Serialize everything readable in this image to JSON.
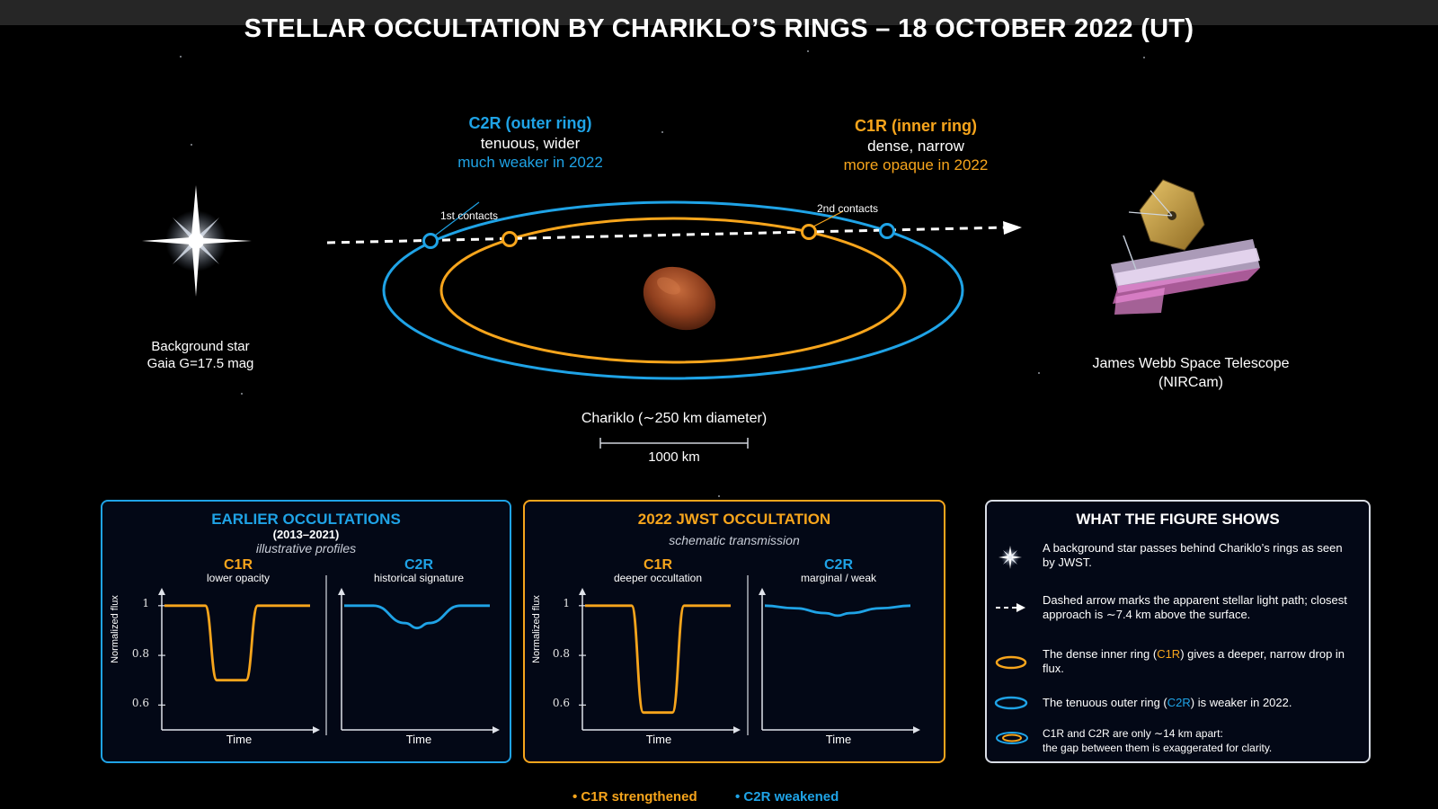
{
  "title": "STELLAR OCCULTATION BY CHARIKLO’S RINGS – 18 OCTOBER 2022 (UT)",
  "colors": {
    "c1r": "#f7a51c",
    "c2r": "#1fa3e6",
    "background": "#000000"
  },
  "diagram": {
    "c2r_label": {
      "name": "C2R (outer ring)",
      "desc": "tenuous, wider",
      "note": "much weaker in 2022"
    },
    "c1r_label": {
      "name": "C1R (inner ring)",
      "desc": "dense, narrow",
      "note": "more opaque in 2022"
    },
    "first_contacts": "1st contacts",
    "second_contacts": "2nd contacts",
    "star_label_1": "Background star",
    "star_label_2": "Gaia G=17.5 mag",
    "jwst_label_1": "James Webb Space Telescope",
    "jwst_label_2": "(NIRCam)",
    "chariklo_label": "Chariklo (∼250 km diameter)",
    "scale_label": "1000 km",
    "icons": [
      "star-icon",
      "jwst-icon",
      "chariklo-body"
    ]
  },
  "earlier_panel": {
    "title": "EARLIER OCCULTATIONS",
    "years": "(2013–2021)",
    "subtitle": "illustrative profiles",
    "ylabel": "Normalized flux",
    "left": {
      "ring": "C1R",
      "desc": "lower opacity",
      "xlabel": "Time"
    },
    "right": {
      "ring": "C2R",
      "desc": "historical signature",
      "xlabel": "Time"
    },
    "yticks": [
      "1",
      "0.8",
      "0.6"
    ]
  },
  "jwst_panel": {
    "title": "2022 JWST OCCULTATION",
    "subtitle": "schematic transmission",
    "ylabel": "Normalized flux",
    "left": {
      "ring": "C1R",
      "desc": "deeper occultation",
      "xlabel": "Time"
    },
    "right": {
      "ring": "C2R",
      "desc": "marginal / weak",
      "xlabel": "Time"
    },
    "yticks": [
      "1",
      "0.8",
      "0.6"
    ]
  },
  "chart_data": [
    {
      "type": "line",
      "title": "C1R",
      "subtitle": "lower opacity",
      "xlabel": "Time",
      "ylabel": "Normalized flux",
      "ylim": [
        0.5,
        1.05
      ],
      "yticks": [
        0.6,
        0.8,
        1
      ],
      "x": [
        0,
        0.15,
        0.28,
        0.36,
        0.56,
        0.64,
        0.78,
        1
      ],
      "series": [
        {
          "values": [
            1,
            1,
            1,
            0.7,
            0.7,
            1,
            1,
            1
          ]
        }
      ],
      "grid": false
    },
    {
      "type": "line",
      "title": "C2R",
      "subtitle": "historical signature",
      "xlabel": "Time",
      "ylim": [
        0.5,
        1.05
      ],
      "x": [
        0,
        0.2,
        0.42,
        0.5,
        0.58,
        0.8,
        1
      ],
      "series": [
        {
          "values": [
            1,
            1,
            0.93,
            0.91,
            0.93,
            1,
            1
          ]
        }
      ],
      "grid": false
    },
    {
      "type": "line",
      "title": "C1R",
      "subtitle": "deeper occultation",
      "xlabel": "Time",
      "ylabel": "Normalized flux",
      "ylim": [
        0.5,
        1.05
      ],
      "yticks": [
        0.6,
        0.8,
        1
      ],
      "x": [
        0,
        0.2,
        0.32,
        0.4,
        0.6,
        0.68,
        0.8,
        1
      ],
      "series": [
        {
          "values": [
            1,
            1,
            1,
            0.57,
            0.57,
            1,
            1,
            1
          ]
        }
      ],
      "grid": false
    },
    {
      "type": "line",
      "title": "C2R",
      "subtitle": "marginal / weak",
      "xlabel": "Time",
      "ylim": [
        0.5,
        1.05
      ],
      "x": [
        0,
        0.2,
        0.42,
        0.5,
        0.58,
        0.8,
        1
      ],
      "series": [
        {
          "values": [
            1,
            0.99,
            0.97,
            0.96,
            0.97,
            0.99,
            1
          ]
        }
      ],
      "grid": false
    }
  ],
  "shows_panel": {
    "title": "WHAT THE FIGURE SHOWS",
    "items": [
      {
        "icon": "star-icon",
        "text": "A background star passes behind Chariklo’s rings as seen by JWST."
      },
      {
        "icon": "dashed-arrow-icon",
        "text": "Dashed arrow marks the apparent stellar light path; closest approach is ∼7.4 km above the surface."
      },
      {
        "icon": "orange-ring-icon",
        "text_before": "The dense inner ring (",
        "ring": "C1R",
        "text_after": ") gives a deeper, narrow drop in flux."
      },
      {
        "icon": "blue-ring-icon",
        "text_before": "The tenuous outer ring (",
        "ring": "C2R",
        "text_after": ") is weaker in 2022."
      },
      {
        "icon": "double-ring-icon",
        "line1": "C1R and C2R are only ∼14 km apart:",
        "line2": "the gap between them is exaggerated for clarity."
      }
    ]
  },
  "legend": {
    "c1r": "• C1R strengthened",
    "c2r": "• C2R weakened"
  }
}
